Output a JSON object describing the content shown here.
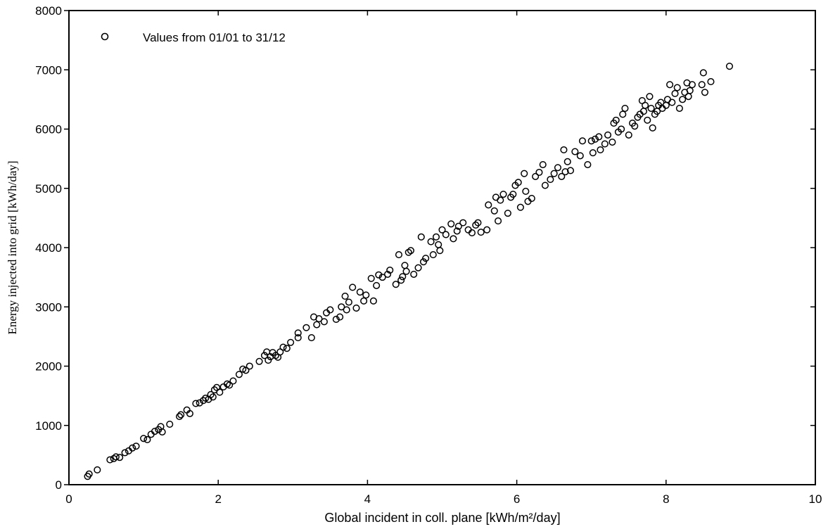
{
  "chart_data": {
    "type": "scatter",
    "xlabel": "Global incident in coll. plane [kWh/m²/day]",
    "ylabel": "Energy injected into grid [kWh/day]",
    "xlim": [
      0,
      10
    ],
    "ylim": [
      0,
      8000
    ],
    "x_ticks": [
      "0",
      "2",
      "4",
      "6",
      "8",
      "10"
    ],
    "y_ticks": [
      "0",
      "1000",
      "2000",
      "3000",
      "4000",
      "5000",
      "6000",
      "7000",
      "8000"
    ],
    "grid": false,
    "legend_position": "top-left",
    "marker": "open-circle",
    "series": [
      {
        "name": "Values from 01/01 to 31/12",
        "points": [
          [
            0.25,
            140
          ],
          [
            0.27,
            180
          ],
          [
            0.38,
            250
          ],
          [
            0.55,
            420
          ],
          [
            0.6,
            440
          ],
          [
            0.63,
            470
          ],
          [
            0.68,
            460
          ],
          [
            0.75,
            540
          ],
          [
            0.8,
            570
          ],
          [
            0.85,
            620
          ],
          [
            0.9,
            650
          ],
          [
            1.0,
            780
          ],
          [
            1.05,
            760
          ],
          [
            1.1,
            850
          ],
          [
            1.15,
            900
          ],
          [
            1.2,
            930
          ],
          [
            1.23,
            980
          ],
          [
            1.25,
            890
          ],
          [
            1.35,
            1020
          ],
          [
            1.48,
            1150
          ],
          [
            1.5,
            1180
          ],
          [
            1.58,
            1260
          ],
          [
            1.62,
            1200
          ],
          [
            1.7,
            1370
          ],
          [
            1.75,
            1380
          ],
          [
            1.8,
            1420
          ],
          [
            1.83,
            1460
          ],
          [
            1.87,
            1440
          ],
          [
            1.9,
            1520
          ],
          [
            1.93,
            1480
          ],
          [
            1.95,
            1600
          ],
          [
            1.98,
            1640
          ],
          [
            2.02,
            1560
          ],
          [
            2.07,
            1650
          ],
          [
            2.12,
            1700
          ],
          [
            2.15,
            1680
          ],
          [
            2.2,
            1750
          ],
          [
            2.28,
            1860
          ],
          [
            2.33,
            1950
          ],
          [
            2.37,
            1930
          ],
          [
            2.42,
            2000
          ],
          [
            2.55,
            2080
          ],
          [
            2.62,
            2180
          ],
          [
            2.65,
            2240
          ],
          [
            2.67,
            2100
          ],
          [
            2.7,
            2160
          ],
          [
            2.73,
            2230
          ],
          [
            2.77,
            2180
          ],
          [
            2.8,
            2150
          ],
          [
            2.83,
            2240
          ],
          [
            2.87,
            2320
          ],
          [
            2.92,
            2300
          ],
          [
            2.97,
            2400
          ],
          [
            3.07,
            2480
          ],
          [
            3.07,
            2560
          ],
          [
            3.18,
            2650
          ],
          [
            3.25,
            2480
          ],
          [
            3.28,
            2830
          ],
          [
            3.32,
            2700
          ],
          [
            3.35,
            2800
          ],
          [
            3.42,
            2750
          ],
          [
            3.45,
            2900
          ],
          [
            3.5,
            2950
          ],
          [
            3.58,
            2790
          ],
          [
            3.63,
            2830
          ],
          [
            3.65,
            3000
          ],
          [
            3.7,
            3180
          ],
          [
            3.72,
            2950
          ],
          [
            3.75,
            3080
          ],
          [
            3.8,
            3330
          ],
          [
            3.85,
            2980
          ],
          [
            3.9,
            3250
          ],
          [
            3.95,
            3100
          ],
          [
            3.98,
            3200
          ],
          [
            4.05,
            3480
          ],
          [
            4.08,
            3100
          ],
          [
            4.12,
            3360
          ],
          [
            4.15,
            3540
          ],
          [
            4.2,
            3500
          ],
          [
            4.27,
            3550
          ],
          [
            4.3,
            3620
          ],
          [
            4.38,
            3380
          ],
          [
            4.42,
            3880
          ],
          [
            4.45,
            3450
          ],
          [
            4.47,
            3510
          ],
          [
            4.5,
            3700
          ],
          [
            4.52,
            3600
          ],
          [
            4.55,
            3920
          ],
          [
            4.58,
            3950
          ],
          [
            4.62,
            3550
          ],
          [
            4.68,
            3660
          ],
          [
            4.72,
            4180
          ],
          [
            4.75,
            3760
          ],
          [
            4.78,
            3820
          ],
          [
            4.85,
            4100
          ],
          [
            4.88,
            3880
          ],
          [
            4.92,
            4180
          ],
          [
            4.95,
            4050
          ],
          [
            4.97,
            3950
          ],
          [
            5.0,
            4300
          ],
          [
            5.05,
            4220
          ],
          [
            5.12,
            4400
          ],
          [
            5.15,
            4150
          ],
          [
            5.2,
            4280
          ],
          [
            5.22,
            4360
          ],
          [
            5.28,
            4420
          ],
          [
            5.35,
            4300
          ],
          [
            5.4,
            4250
          ],
          [
            5.45,
            4380
          ],
          [
            5.48,
            4420
          ],
          [
            5.52,
            4260
          ],
          [
            5.6,
            4300
          ],
          [
            5.62,
            4720
          ],
          [
            5.7,
            4620
          ],
          [
            5.72,
            4850
          ],
          [
            5.75,
            4450
          ],
          [
            5.78,
            4800
          ],
          [
            5.82,
            4900
          ],
          [
            5.88,
            4580
          ],
          [
            5.92,
            4850
          ],
          [
            5.95,
            4900
          ],
          [
            5.98,
            5050
          ],
          [
            6.02,
            5100
          ],
          [
            6.05,
            4680
          ],
          [
            6.1,
            5250
          ],
          [
            6.12,
            4950
          ],
          [
            6.15,
            4780
          ],
          [
            6.2,
            4830
          ],
          [
            6.25,
            5200
          ],
          [
            6.3,
            5270
          ],
          [
            6.35,
            5400
          ],
          [
            6.38,
            5050
          ],
          [
            6.45,
            5150
          ],
          [
            6.5,
            5250
          ],
          [
            6.55,
            5350
          ],
          [
            6.6,
            5200
          ],
          [
            6.63,
            5650
          ],
          [
            6.65,
            5280
          ],
          [
            6.68,
            5450
          ],
          [
            6.72,
            5300
          ],
          [
            6.78,
            5620
          ],
          [
            6.85,
            5550
          ],
          [
            6.88,
            5800
          ],
          [
            6.95,
            5400
          ],
          [
            7.0,
            5800
          ],
          [
            7.02,
            5600
          ],
          [
            7.05,
            5830
          ],
          [
            7.1,
            5870
          ],
          [
            7.12,
            5650
          ],
          [
            7.18,
            5750
          ],
          [
            7.22,
            5900
          ],
          [
            7.28,
            5780
          ],
          [
            7.3,
            6100
          ],
          [
            7.33,
            6150
          ],
          [
            7.36,
            5950
          ],
          [
            7.4,
            6000
          ],
          [
            7.42,
            6250
          ],
          [
            7.45,
            6350
          ],
          [
            7.5,
            5900
          ],
          [
            7.55,
            6100
          ],
          [
            7.58,
            6050
          ],
          [
            7.62,
            6200
          ],
          [
            7.65,
            6250
          ],
          [
            7.68,
            6480
          ],
          [
            7.7,
            6300
          ],
          [
            7.72,
            6400
          ],
          [
            7.75,
            6150
          ],
          [
            7.78,
            6550
          ],
          [
            7.8,
            6350
          ],
          [
            7.82,
            6020
          ],
          [
            7.85,
            6250
          ],
          [
            7.88,
            6300
          ],
          [
            7.9,
            6400
          ],
          [
            7.93,
            6450
          ],
          [
            7.95,
            6350
          ],
          [
            8.0,
            6400
          ],
          [
            8.02,
            6500
          ],
          [
            8.05,
            6750
          ],
          [
            8.08,
            6450
          ],
          [
            8.12,
            6600
          ],
          [
            8.15,
            6700
          ],
          [
            8.18,
            6350
          ],
          [
            8.22,
            6500
          ],
          [
            8.25,
            6620
          ],
          [
            8.28,
            6780
          ],
          [
            8.3,
            6550
          ],
          [
            8.32,
            6650
          ],
          [
            8.35,
            6750
          ],
          [
            8.48,
            6750
          ],
          [
            8.5,
            6950
          ],
          [
            8.52,
            6620
          ],
          [
            8.6,
            6800
          ],
          [
            8.85,
            7060
          ]
        ]
      }
    ]
  }
}
